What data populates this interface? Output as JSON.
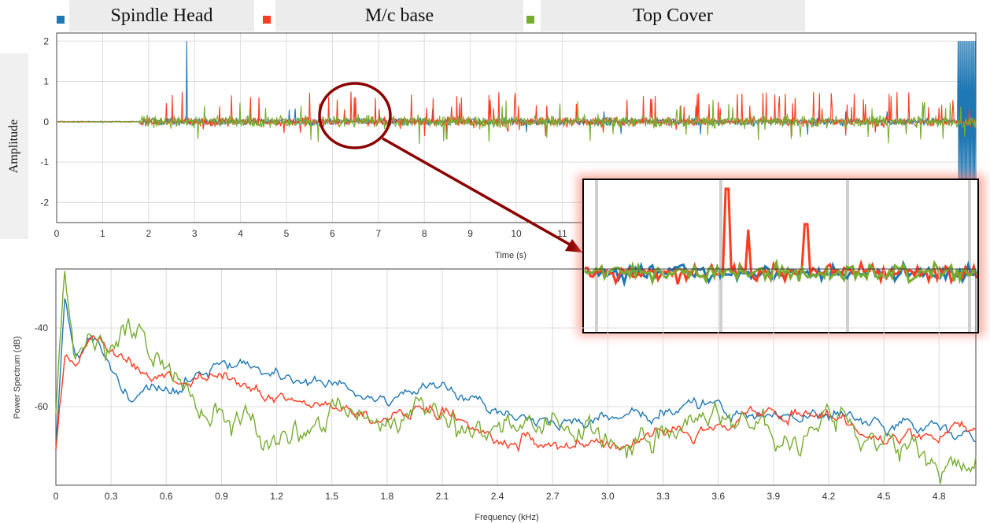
{
  "legend": [
    {
      "name": "Spindle Head",
      "color": "#1f77b4"
    },
    {
      "name": "M/c base",
      "color": "#ff3b1f"
    },
    {
      "name": "Top Cover",
      "color": "#77ac30"
    }
  ],
  "colors": {
    "blue": "#1f77b4",
    "red": "#ff3b1f",
    "green": "#77ac30",
    "grid": "#dcdcdc",
    "callout": "#8b0000",
    "glow": "#ff6a5a"
  },
  "chart_data": [
    {
      "type": "line",
      "xlabel": "Time (s)",
      "ylabel": "Amplitude",
      "xlim": [
        0,
        20
      ],
      "ylim": [
        -2.5,
        2.2
      ],
      "xticks": [
        "0",
        "1",
        "2",
        "3",
        "4",
        "5",
        "6",
        "7",
        "8",
        "9",
        "10",
        "11"
      ],
      "yticks": [
        "2",
        "1",
        "0",
        "-1",
        "-2"
      ],
      "grid": true,
      "series": [
        {
          "name": "Spindle Head",
          "description": "vibration signal, spike to 2 at t=2.83 s and at end, noise amplitude ~0.2 after t=1.8 s"
        },
        {
          "name": "M/c base",
          "description": "vibration signal with frequent spikes up to ~0.8, noise ~0.25 after t=1.8 s"
        },
        {
          "name": "Top Cover",
          "description": "vibration signal, dense noise ~0.3 after t=1.8 s"
        }
      ],
      "inset": {
        "note": "zoomed view of circled region around t=6.5 s"
      }
    },
    {
      "type": "line",
      "xlabel": "Frequency (kHz)",
      "ylabel": "Power Spectrum (dB)",
      "xlim": [
        0,
        5
      ],
      "ylim": [
        -80,
        -25
      ],
      "xticks": [
        "0",
        "0.3",
        "0.6",
        "0.9",
        "1.2",
        "1.5",
        "1.8",
        "2.1",
        "2.4",
        "2.7",
        "3.0",
        "3.3",
        "3.6",
        "3.9",
        "4.2",
        "4.5",
        "4.8"
      ],
      "yticks": [
        "-40",
        "-60"
      ],
      "grid": true,
      "series": [
        {
          "name": "Spindle Head",
          "x": [
            0,
            0.05,
            0.1,
            0.2,
            0.3,
            0.4,
            0.6,
            0.9,
            1.2,
            1.5,
            1.8,
            2.1,
            2.4,
            2.7,
            3.0,
            3.3,
            3.6,
            3.9,
            4.2,
            4.5,
            4.8,
            5.0
          ],
          "values": [
            -70,
            -32,
            -46,
            -44,
            -50,
            -58,
            -56,
            -48,
            -53,
            -55,
            -58,
            -55,
            -62,
            -64,
            -62,
            -61,
            -61,
            -62,
            -62,
            -64,
            -66,
            -69
          ]
        },
        {
          "name": "M/c base",
          "x": [
            0,
            0.05,
            0.1,
            0.2,
            0.3,
            0.4,
            0.6,
            0.9,
            1.2,
            1.5,
            1.8,
            2.1,
            2.4,
            2.7,
            3.0,
            3.3,
            3.6,
            3.9,
            4.2,
            4.5,
            4.8,
            5.0
          ],
          "values": [
            -72,
            -45,
            -50,
            -41,
            -45,
            -50,
            -53,
            -54,
            -56,
            -60,
            -62,
            -60,
            -67,
            -69,
            -71,
            -65,
            -65,
            -62,
            -62,
            -68,
            -67,
            -66
          ]
        },
        {
          "name": "Top Cover",
          "x": [
            0,
            0.05,
            0.1,
            0.2,
            0.3,
            0.4,
            0.6,
            0.9,
            1.2,
            1.5,
            1.8,
            2.1,
            2.4,
            2.7,
            3.0,
            3.3,
            3.6,
            3.9,
            4.2,
            4.5,
            4.8,
            5.0
          ],
          "values": [
            -60,
            -25,
            -52,
            -42,
            -48,
            -42,
            -52,
            -62,
            -68,
            -64,
            -60,
            -62,
            -66,
            -63,
            -68,
            -67,
            -63,
            -66,
            -64,
            -70,
            -74,
            -73
          ]
        }
      ]
    }
  ]
}
